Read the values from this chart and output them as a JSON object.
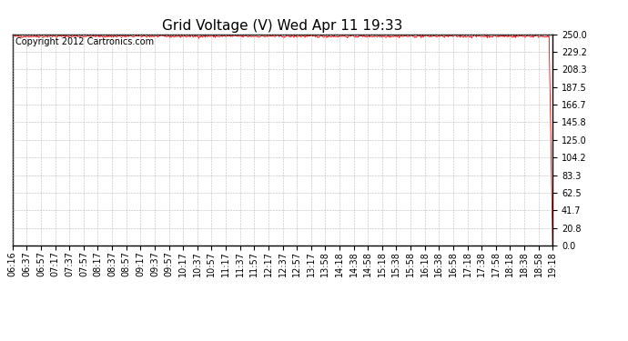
{
  "title": "Grid Voltage (V) Wed Apr 11 19:33",
  "copyright_text": "Copyright 2012 Cartronics.com",
  "line_color": "#ff0000",
  "background_color": "#ffffff",
  "plot_bg_color": "#ffffff",
  "grid_color": "#aaaaaa",
  "ylim": [
    0.0,
    250.0
  ],
  "yticks": [
    0.0,
    20.8,
    41.7,
    62.5,
    83.3,
    104.2,
    125.0,
    145.8,
    166.7,
    187.5,
    208.3,
    229.2,
    250.0
  ],
  "xtick_labels": [
    "06:16",
    "06:37",
    "06:57",
    "07:17",
    "07:37",
    "07:57",
    "08:17",
    "08:37",
    "08:57",
    "09:17",
    "09:37",
    "09:57",
    "10:17",
    "10:37",
    "10:57",
    "11:17",
    "11:37",
    "11:57",
    "12:17",
    "12:37",
    "12:57",
    "13:17",
    "13:58",
    "14:18",
    "14:38",
    "14:58",
    "15:18",
    "15:38",
    "15:58",
    "16:18",
    "16:38",
    "16:58",
    "17:18",
    "17:38",
    "17:58",
    "18:18",
    "18:38",
    "18:58",
    "19:18"
  ],
  "steady_voltage": 247.5,
  "noise_amplitude": 0.8,
  "title_fontsize": 11,
  "tick_fontsize": 7,
  "copyright_fontsize": 7
}
